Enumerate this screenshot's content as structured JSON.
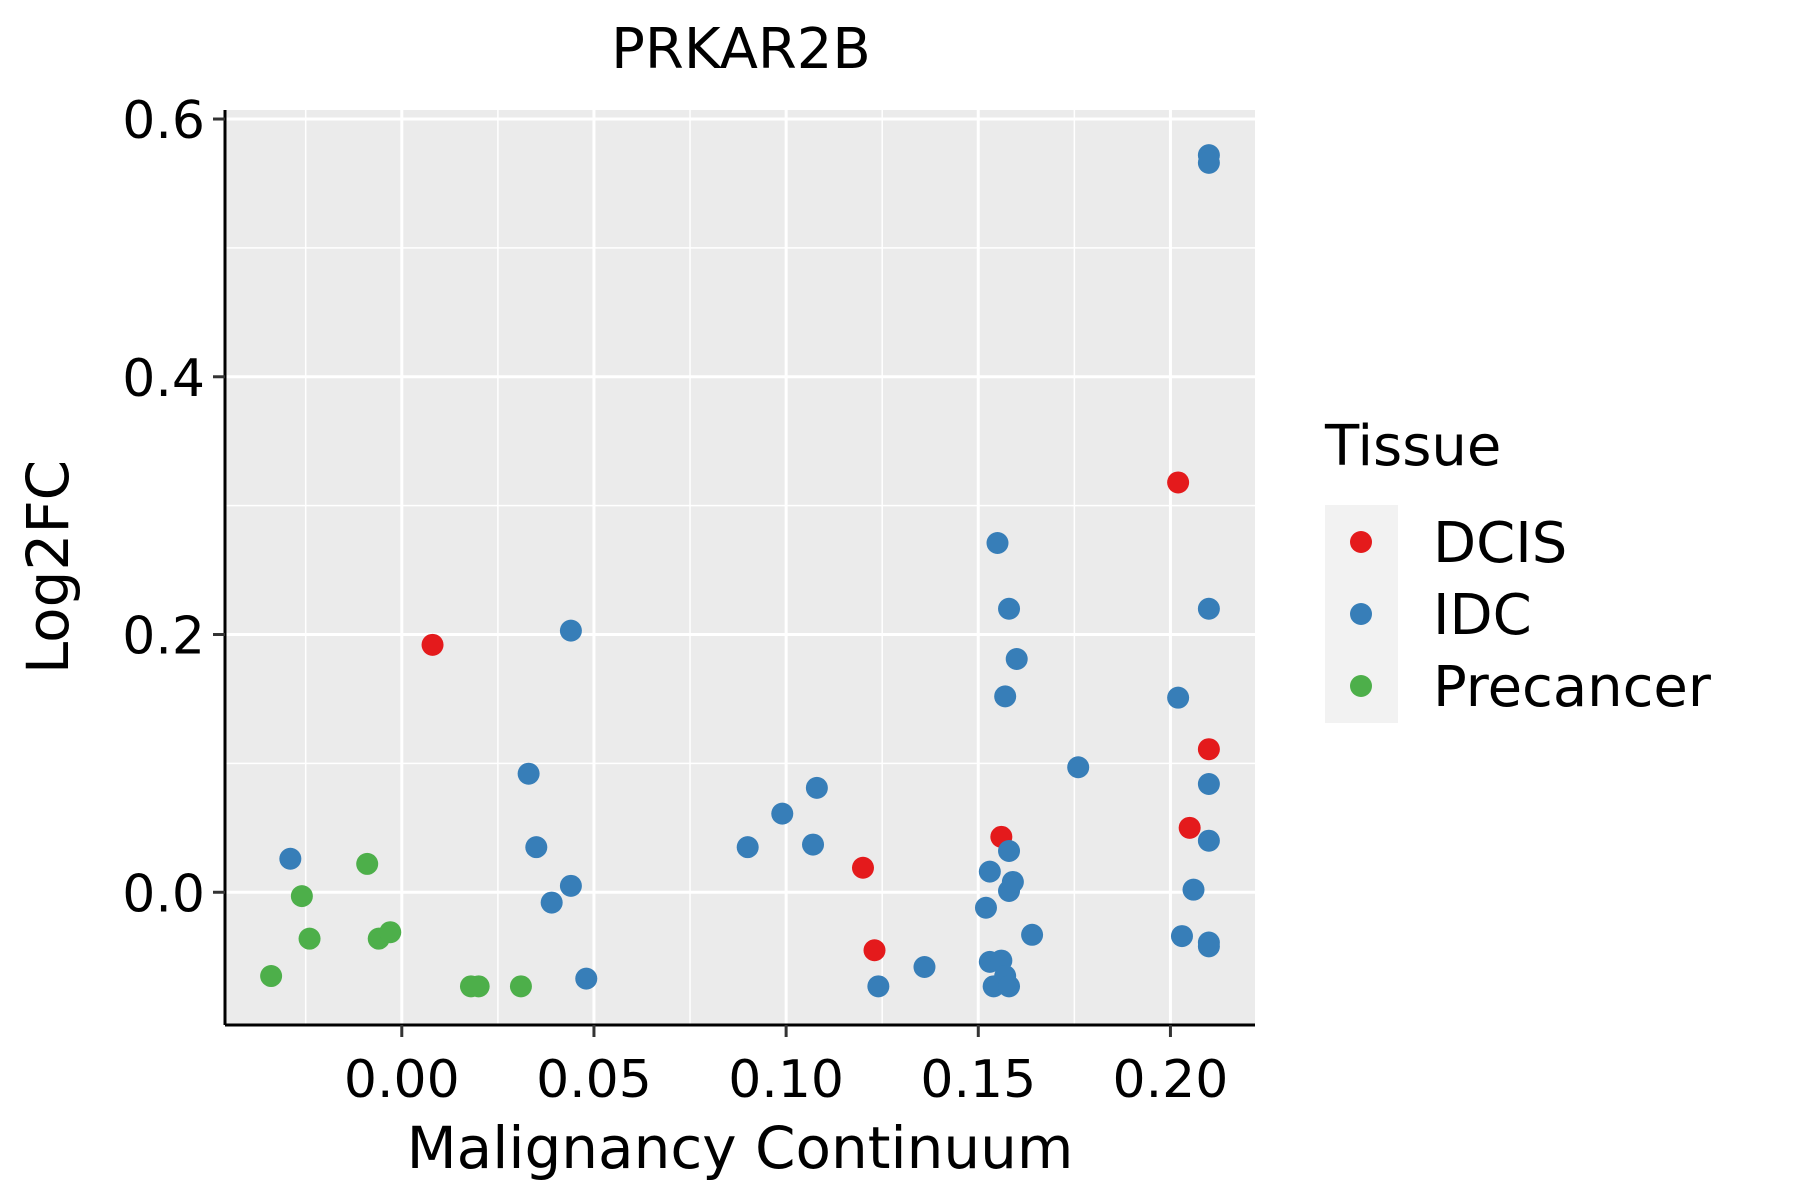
{
  "chart_data": {
    "type": "scatter",
    "title": "PRKAR2B",
    "xlabel": "Malignancy Continuum",
    "ylabel": "Log2FC",
    "xlim": [
      -0.046,
      0.222
    ],
    "ylim": [
      -0.103,
      0.607
    ],
    "xticks": [
      0.0,
      0.05,
      0.1,
      0.15,
      0.2
    ],
    "xtick_labels": [
      "0.00",
      "0.05",
      "0.10",
      "0.15",
      "0.20"
    ],
    "yticks": [
      0.0,
      0.2,
      0.4,
      0.6
    ],
    "ytick_labels": [
      "0.0",
      "0.2",
      "0.4",
      "0.6"
    ],
    "grid": true,
    "legend": {
      "title": "Tissue",
      "position": "right",
      "entries": [
        {
          "name": "DCIS",
          "color": "#E41A1C"
        },
        {
          "name": "IDC",
          "color": "#377EB8"
        },
        {
          "name": "Precancer",
          "color": "#4DAF4A"
        }
      ]
    },
    "series": [
      {
        "name": "DCIS",
        "color": "#E41A1C",
        "points": [
          {
            "x": 0.008,
            "y": 0.192
          },
          {
            "x": 0.12,
            "y": 0.019
          },
          {
            "x": 0.123,
            "y": -0.045
          },
          {
            "x": 0.156,
            "y": 0.043
          },
          {
            "x": 0.202,
            "y": 0.318
          },
          {
            "x": 0.205,
            "y": 0.05
          },
          {
            "x": 0.21,
            "y": 0.111
          }
        ]
      },
      {
        "name": "IDC",
        "color": "#377EB8",
        "points": [
          {
            "x": -0.029,
            "y": 0.026
          },
          {
            "x": 0.033,
            "y": 0.092
          },
          {
            "x": 0.035,
            "y": 0.035
          },
          {
            "x": 0.039,
            "y": -0.008
          },
          {
            "x": 0.044,
            "y": 0.005
          },
          {
            "x": 0.044,
            "y": 0.203
          },
          {
            "x": 0.048,
            "y": -0.067
          },
          {
            "x": 0.09,
            "y": 0.035
          },
          {
            "x": 0.099,
            "y": 0.061
          },
          {
            "x": 0.107,
            "y": 0.037
          },
          {
            "x": 0.108,
            "y": 0.081
          },
          {
            "x": 0.124,
            "y": -0.073
          },
          {
            "x": 0.136,
            "y": -0.058
          },
          {
            "x": 0.152,
            "y": -0.012
          },
          {
            "x": 0.153,
            "y": 0.016
          },
          {
            "x": 0.153,
            "y": -0.054
          },
          {
            "x": 0.154,
            "y": -0.073
          },
          {
            "x": 0.155,
            "y": 0.271
          },
          {
            "x": 0.156,
            "y": -0.053
          },
          {
            "x": 0.157,
            "y": 0.152
          },
          {
            "x": 0.157,
            "y": -0.065
          },
          {
            "x": 0.158,
            "y": 0.032
          },
          {
            "x": 0.158,
            "y": 0.001
          },
          {
            "x": 0.159,
            "y": 0.008
          },
          {
            "x": 0.158,
            "y": -0.073
          },
          {
            "x": 0.158,
            "y": 0.22
          },
          {
            "x": 0.16,
            "y": 0.181
          },
          {
            "x": 0.164,
            "y": -0.033
          },
          {
            "x": 0.176,
            "y": 0.097
          },
          {
            "x": 0.202,
            "y": 0.151
          },
          {
            "x": 0.203,
            "y": -0.034
          },
          {
            "x": 0.206,
            "y": 0.002
          },
          {
            "x": 0.21,
            "y": 0.04
          },
          {
            "x": 0.21,
            "y": 0.084
          },
          {
            "x": 0.21,
            "y": 0.22
          },
          {
            "x": 0.21,
            "y": -0.039
          },
          {
            "x": 0.21,
            "y": -0.042
          },
          {
            "x": 0.21,
            "y": 0.572
          },
          {
            "x": 0.21,
            "y": 0.566
          }
        ]
      },
      {
        "name": "Precancer",
        "color": "#4DAF4A",
        "points": [
          {
            "x": -0.034,
            "y": -0.065
          },
          {
            "x": -0.026,
            "y": -0.003
          },
          {
            "x": -0.024,
            "y": -0.036
          },
          {
            "x": -0.009,
            "y": 0.022
          },
          {
            "x": -0.006,
            "y": -0.036
          },
          {
            "x": -0.003,
            "y": -0.031
          },
          {
            "x": 0.018,
            "y": -0.073
          },
          {
            "x": 0.02,
            "y": -0.073
          },
          {
            "x": 0.031,
            "y": -0.073
          }
        ]
      }
    ]
  }
}
